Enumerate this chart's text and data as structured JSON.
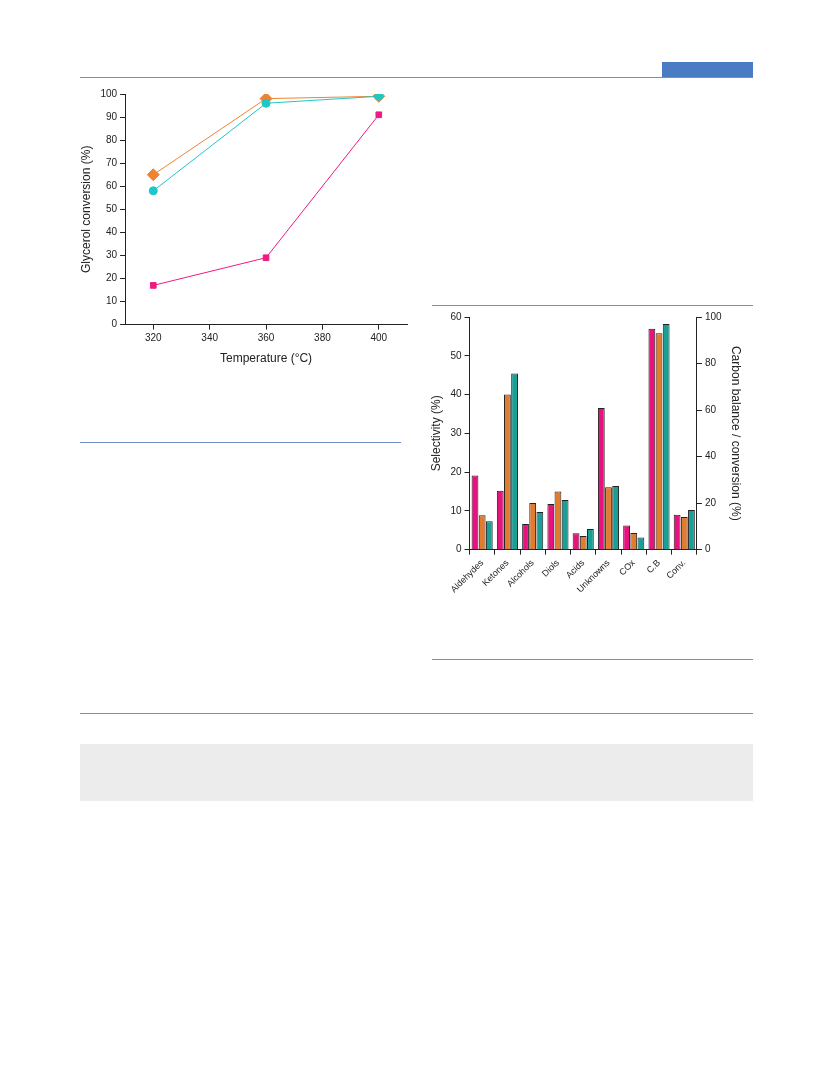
{
  "chart_data": [
    {
      "type": "line",
      "xlabel": "Temperature (°C)",
      "ylabel": "Glycerol conversion (%)",
      "x": [
        320,
        360,
        400
      ],
      "xlim": [
        310,
        410
      ],
      "xticks": [
        320,
        340,
        360,
        380,
        400
      ],
      "ylim": [
        0,
        100
      ],
      "yticks": [
        0,
        10,
        20,
        30,
        40,
        50,
        60,
        70,
        80,
        90,
        100
      ],
      "grid": false,
      "legend": false,
      "line_style": "solid",
      "series": [
        {
          "color": "#f08331",
          "marker": "diamond",
          "values": [
            65,
            98,
            99
          ]
        },
        {
          "color": "#1ec8c8",
          "marker": "circle",
          "values": [
            58,
            96,
            99
          ]
        },
        {
          "color": "#ef1a82",
          "marker": "square",
          "values": [
            17,
            29,
            91
          ]
        }
      ]
    },
    {
      "type": "bar",
      "ylabel": "Selectivity (%)",
      "y2label": "Carbon balance / conversion (%)",
      "categories": [
        "Aldehydes",
        "Ketones",
        "Alcohols",
        "Diols",
        "Acids",
        "Unknowns",
        "COx",
        "C.B",
        "Conv."
      ],
      "ylim": [
        0,
        60
      ],
      "yticks": [
        0,
        10,
        20,
        30,
        40,
        50,
        60
      ],
      "y2lim": [
        0,
        100
      ],
      "y2ticks": [
        0,
        20,
        40,
        60,
        80,
        100
      ],
      "grid": false,
      "legend": false,
      "series": [
        {
          "color": "#e8127f",
          "values": [
            19.1,
            15.2,
            6.6,
            11.8,
            4.2,
            36.5,
            6.2,
            null,
            null
          ]
        },
        {
          "color": "#e07b2f",
          "values": [
            8.9,
            40,
            12,
            15,
            3.5,
            16.1,
            4.3,
            null,
            null
          ]
        },
        {
          "color": "#1a9e96",
          "values": [
            7.3,
            45.4,
            9.7,
            12.8,
            5.3,
            16.4,
            3.1,
            null,
            null
          ]
        },
        {
          "color": "#e8127f",
          "axis": "y2",
          "values": [
            null,
            null,
            null,
            null,
            null,
            null,
            null,
            95,
            15
          ]
        },
        {
          "color": "#e07b2f",
          "axis": "y2",
          "values": [
            null,
            null,
            null,
            null,
            null,
            null,
            null,
            93,
            14
          ]
        },
        {
          "color": "#1a9e96",
          "axis": "y2",
          "values": [
            null,
            null,
            null,
            null,
            null,
            null,
            null,
            97,
            17
          ]
        }
      ]
    }
  ]
}
